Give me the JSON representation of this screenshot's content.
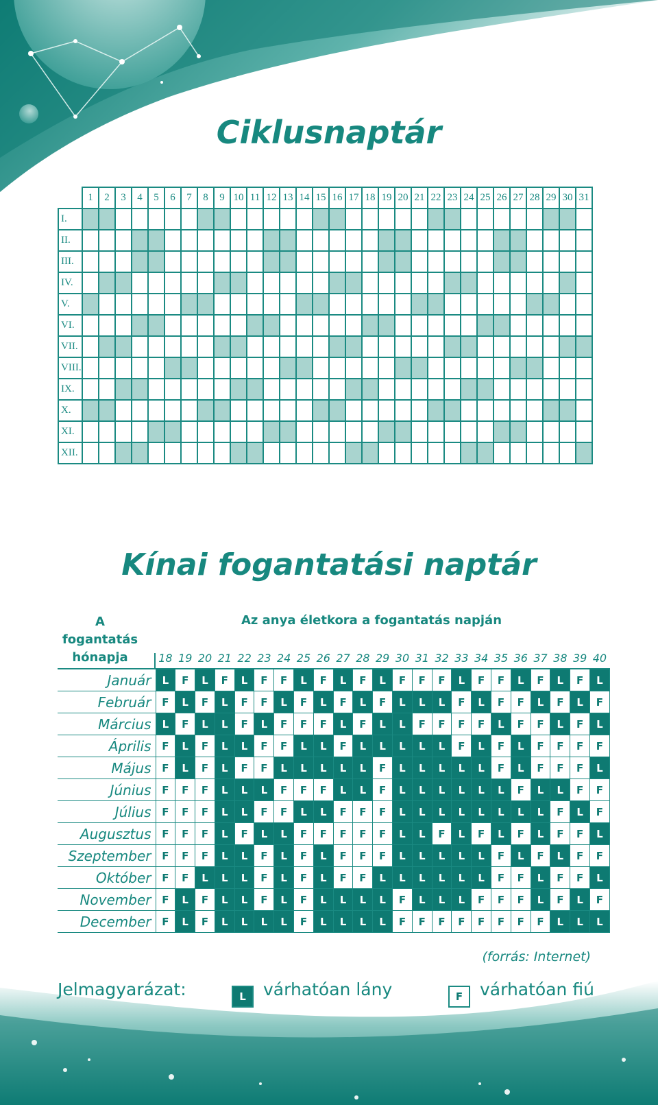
{
  "cycle_calendar": {
    "title": "Ciklusnaptár",
    "day_headers": [
      "1",
      "2",
      "3",
      "4",
      "5",
      "6",
      "7",
      "8",
      "9",
      "10",
      "11",
      "12",
      "13",
      "14",
      "15",
      "16",
      "17",
      "18",
      "19",
      "20",
      "21",
      "22",
      "23",
      "24",
      "25",
      "26",
      "27",
      "28",
      "29",
      "30",
      "31"
    ],
    "months": [
      {
        "label": "I.",
        "shaded_days": [
          1,
          2,
          8,
          9,
          15,
          16,
          22,
          23,
          29,
          30
        ]
      },
      {
        "label": "II.",
        "shaded_days": [
          4,
          5,
          12,
          13,
          19,
          20,
          26,
          27
        ]
      },
      {
        "label": "III.",
        "shaded_days": [
          4,
          5,
          12,
          13,
          19,
          20,
          26,
          27
        ]
      },
      {
        "label": "IV.",
        "shaded_days": [
          2,
          3,
          9,
          10,
          16,
          17,
          23,
          24,
          30
        ]
      },
      {
        "label": "V.",
        "shaded_days": [
          1,
          7,
          8,
          14,
          15,
          21,
          22,
          28,
          29
        ]
      },
      {
        "label": "VI.",
        "shaded_days": [
          4,
          5,
          11,
          12,
          18,
          19,
          25,
          26
        ]
      },
      {
        "label": "VII.",
        "shaded_days": [
          2,
          3,
          9,
          10,
          16,
          17,
          23,
          24,
          30,
          31
        ]
      },
      {
        "label": "VIII.",
        "shaded_days": [
          6,
          7,
          13,
          14,
          20,
          21,
          27,
          28
        ]
      },
      {
        "label": "IX.",
        "shaded_days": [
          3,
          4,
          10,
          11,
          17,
          18,
          24,
          25
        ]
      },
      {
        "label": "X.",
        "shaded_days": [
          1,
          2,
          8,
          9,
          15,
          16,
          22,
          23,
          29,
          30
        ]
      },
      {
        "label": "XI.",
        "shaded_days": [
          5,
          6,
          12,
          13,
          19,
          20,
          26,
          27
        ]
      },
      {
        "label": "XII.",
        "shaded_days": [
          3,
          4,
          10,
          11,
          17,
          18,
          24,
          25,
          31
        ]
      }
    ]
  },
  "chinese_calendar": {
    "title": "Kínai fogantatási naptár",
    "header_left": "A fogantatás hónapja",
    "header_right": "Az anya életkora a fogantatás napján",
    "ages": [
      "18",
      "19",
      "20",
      "21",
      "22",
      "23",
      "24",
      "25",
      "26",
      "27",
      "28",
      "29",
      "30",
      "31",
      "32",
      "33",
      "34",
      "35",
      "36",
      "37",
      "38",
      "39",
      "40"
    ],
    "rows": [
      {
        "month": "Január",
        "values": [
          "L",
          "F",
          "L",
          "F",
          "L",
          "F",
          "F",
          "L",
          "F",
          "L",
          "F",
          "L",
          "F",
          "F",
          "F",
          "L",
          "F",
          "F",
          "L",
          "F",
          "L",
          "F",
          "L"
        ]
      },
      {
        "month": "Február",
        "values": [
          "F",
          "L",
          "F",
          "L",
          "F",
          "F",
          "L",
          "F",
          "L",
          "F",
          "L",
          "F",
          "L",
          "L",
          "L",
          "F",
          "L",
          "F",
          "F",
          "L",
          "F",
          "L",
          "F"
        ]
      },
      {
        "month": "Március",
        "values": [
          "L",
          "F",
          "L",
          "L",
          "F",
          "L",
          "F",
          "F",
          "F",
          "L",
          "F",
          "L",
          "L",
          "F",
          "F",
          "F",
          "F",
          "L",
          "F",
          "F",
          "L",
          "F",
          "L"
        ]
      },
      {
        "month": "Április",
        "values": [
          "F",
          "L",
          "F",
          "L",
          "L",
          "F",
          "F",
          "L",
          "L",
          "F",
          "L",
          "L",
          "L",
          "L",
          "L",
          "F",
          "L",
          "F",
          "L",
          "F",
          "F",
          "F",
          "F"
        ]
      },
      {
        "month": "Május",
        "values": [
          "F",
          "L",
          "F",
          "L",
          "F",
          "F",
          "L",
          "L",
          "L",
          "L",
          "L",
          "F",
          "L",
          "L",
          "L",
          "L",
          "L",
          "F",
          "L",
          "F",
          "F",
          "F",
          "L"
        ]
      },
      {
        "month": "Június",
        "values": [
          "F",
          "F",
          "F",
          "L",
          "L",
          "L",
          "F",
          "F",
          "F",
          "L",
          "L",
          "F",
          "L",
          "L",
          "L",
          "L",
          "L",
          "L",
          "F",
          "L",
          "L",
          "F",
          "F"
        ]
      },
      {
        "month": "Július",
        "values": [
          "F",
          "F",
          "F",
          "L",
          "L",
          "F",
          "F",
          "L",
          "L",
          "F",
          "F",
          "F",
          "L",
          "L",
          "L",
          "L",
          "L",
          "L",
          "L",
          "L",
          "F",
          "L",
          "F"
        ]
      },
      {
        "month": "Augusztus",
        "values": [
          "F",
          "F",
          "F",
          "L",
          "F",
          "L",
          "L",
          "F",
          "F",
          "F",
          "F",
          "F",
          "L",
          "L",
          "F",
          "L",
          "F",
          "L",
          "F",
          "L",
          "F",
          "F",
          "L"
        ]
      },
      {
        "month": "Szeptember",
        "values": [
          "F",
          "F",
          "F",
          "L",
          "L",
          "F",
          "L",
          "F",
          "L",
          "F",
          "F",
          "F",
          "L",
          "L",
          "L",
          "L",
          "L",
          "F",
          "L",
          "F",
          "L",
          "F",
          "F"
        ]
      },
      {
        "month": "Október",
        "values": [
          "F",
          "F",
          "L",
          "L",
          "L",
          "F",
          "L",
          "F",
          "L",
          "F",
          "F",
          "L",
          "L",
          "L",
          "L",
          "L",
          "L",
          "F",
          "F",
          "L",
          "F",
          "F",
          "L"
        ]
      },
      {
        "month": "November",
        "values": [
          "F",
          "L",
          "F",
          "L",
          "L",
          "F",
          "L",
          "F",
          "L",
          "L",
          "L",
          "L",
          "F",
          "L",
          "L",
          "L",
          "F",
          "F",
          "F",
          "L",
          "F",
          "L",
          "F"
        ]
      },
      {
        "month": "December",
        "values": [
          "F",
          "L",
          "F",
          "L",
          "L",
          "L",
          "L",
          "F",
          "L",
          "L",
          "L",
          "L",
          "F",
          "F",
          "F",
          "F",
          "F",
          "F",
          "F",
          "F",
          "L",
          "L",
          "L"
        ]
      }
    ],
    "source": "(forrás: Internet)"
  },
  "legend": {
    "label": "Jelmagyarázat:",
    "girl_code": "L",
    "girl_text": "várhatóan lány",
    "boy_code": "F",
    "boy_text": "várhatóan fiú"
  },
  "colors": {
    "teal_dark": "#0e7a72",
    "teal_text": "#17887f",
    "shade": "#a9d4cf"
  }
}
